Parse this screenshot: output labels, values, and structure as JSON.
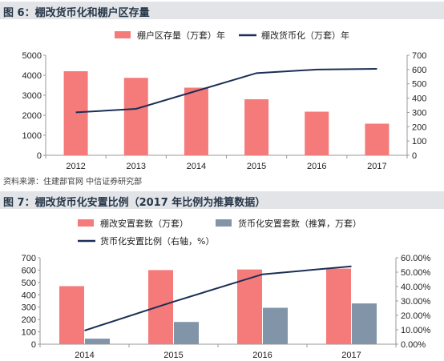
{
  "chart_data": [
    {
      "type": "bar+line",
      "title": "图 6：棚改货币化和棚户区存量",
      "categories": [
        "2012",
        "2013",
        "2014",
        "2015",
        "2016",
        "2017"
      ],
      "series": [
        {
          "name": "棚户区存量（万套）年",
          "type": "bar",
          "axis": "left",
          "color": "#f57a7a",
          "values": [
            4200,
            3870,
            3380,
            2800,
            2180,
            1580
          ]
        },
        {
          "name": "棚改货币化（万套）年",
          "type": "line",
          "axis": "right",
          "color": "#1c2e55",
          "values": [
            300,
            325,
            450,
            575,
            600,
            605
          ]
        }
      ],
      "y_left": {
        "ticks": [
          "0",
          "1000",
          "2000",
          "3000",
          "4000",
          "5000"
        ],
        "ylim": [
          0,
          5000
        ]
      },
      "y_right": {
        "ticks": [
          "0",
          "100",
          "200",
          "300",
          "400",
          "500",
          "600",
          "700"
        ],
        "ylim": [
          0,
          700
        ]
      },
      "grid": false,
      "legend": "top"
    },
    {
      "type": "bar+line",
      "title": "图 7：棚改货币化安置比例（2017 年比例为推算数据）",
      "categories": [
        "2014",
        "2015",
        "2016",
        "2017"
      ],
      "series": [
        {
          "name": "棚改安置套数（万套）",
          "type": "bar",
          "axis": "left",
          "color": "#f57a7a",
          "values": [
            470,
            600,
            605,
            612
          ]
        },
        {
          "name": "货币化安置套数（推算，万套）",
          "type": "bar",
          "axis": "left",
          "color": "#8294a8",
          "values": [
            45,
            180,
            295,
            330
          ]
        },
        {
          "name": "货币化安置比例（右轴，%）",
          "type": "line",
          "axis": "right",
          "color": "#1c2e55",
          "values": [
            9.5,
            29.5,
            48.5,
            54
          ]
        }
      ],
      "y_left": {
        "ticks": [
          "0",
          "100",
          "200",
          "300",
          "400",
          "500",
          "600",
          "700"
        ],
        "ylim": [
          0,
          700
        ]
      },
      "y_right": {
        "ticks": [
          "0.00%",
          "10.00%",
          "20.00%",
          "30.00%",
          "40.00%",
          "50.00%",
          "60.00%"
        ],
        "ylim": [
          0,
          60
        ]
      },
      "grid": false,
      "legend": "top"
    }
  ],
  "source_note": "资料来源：住建部官网 中信证券研究部"
}
